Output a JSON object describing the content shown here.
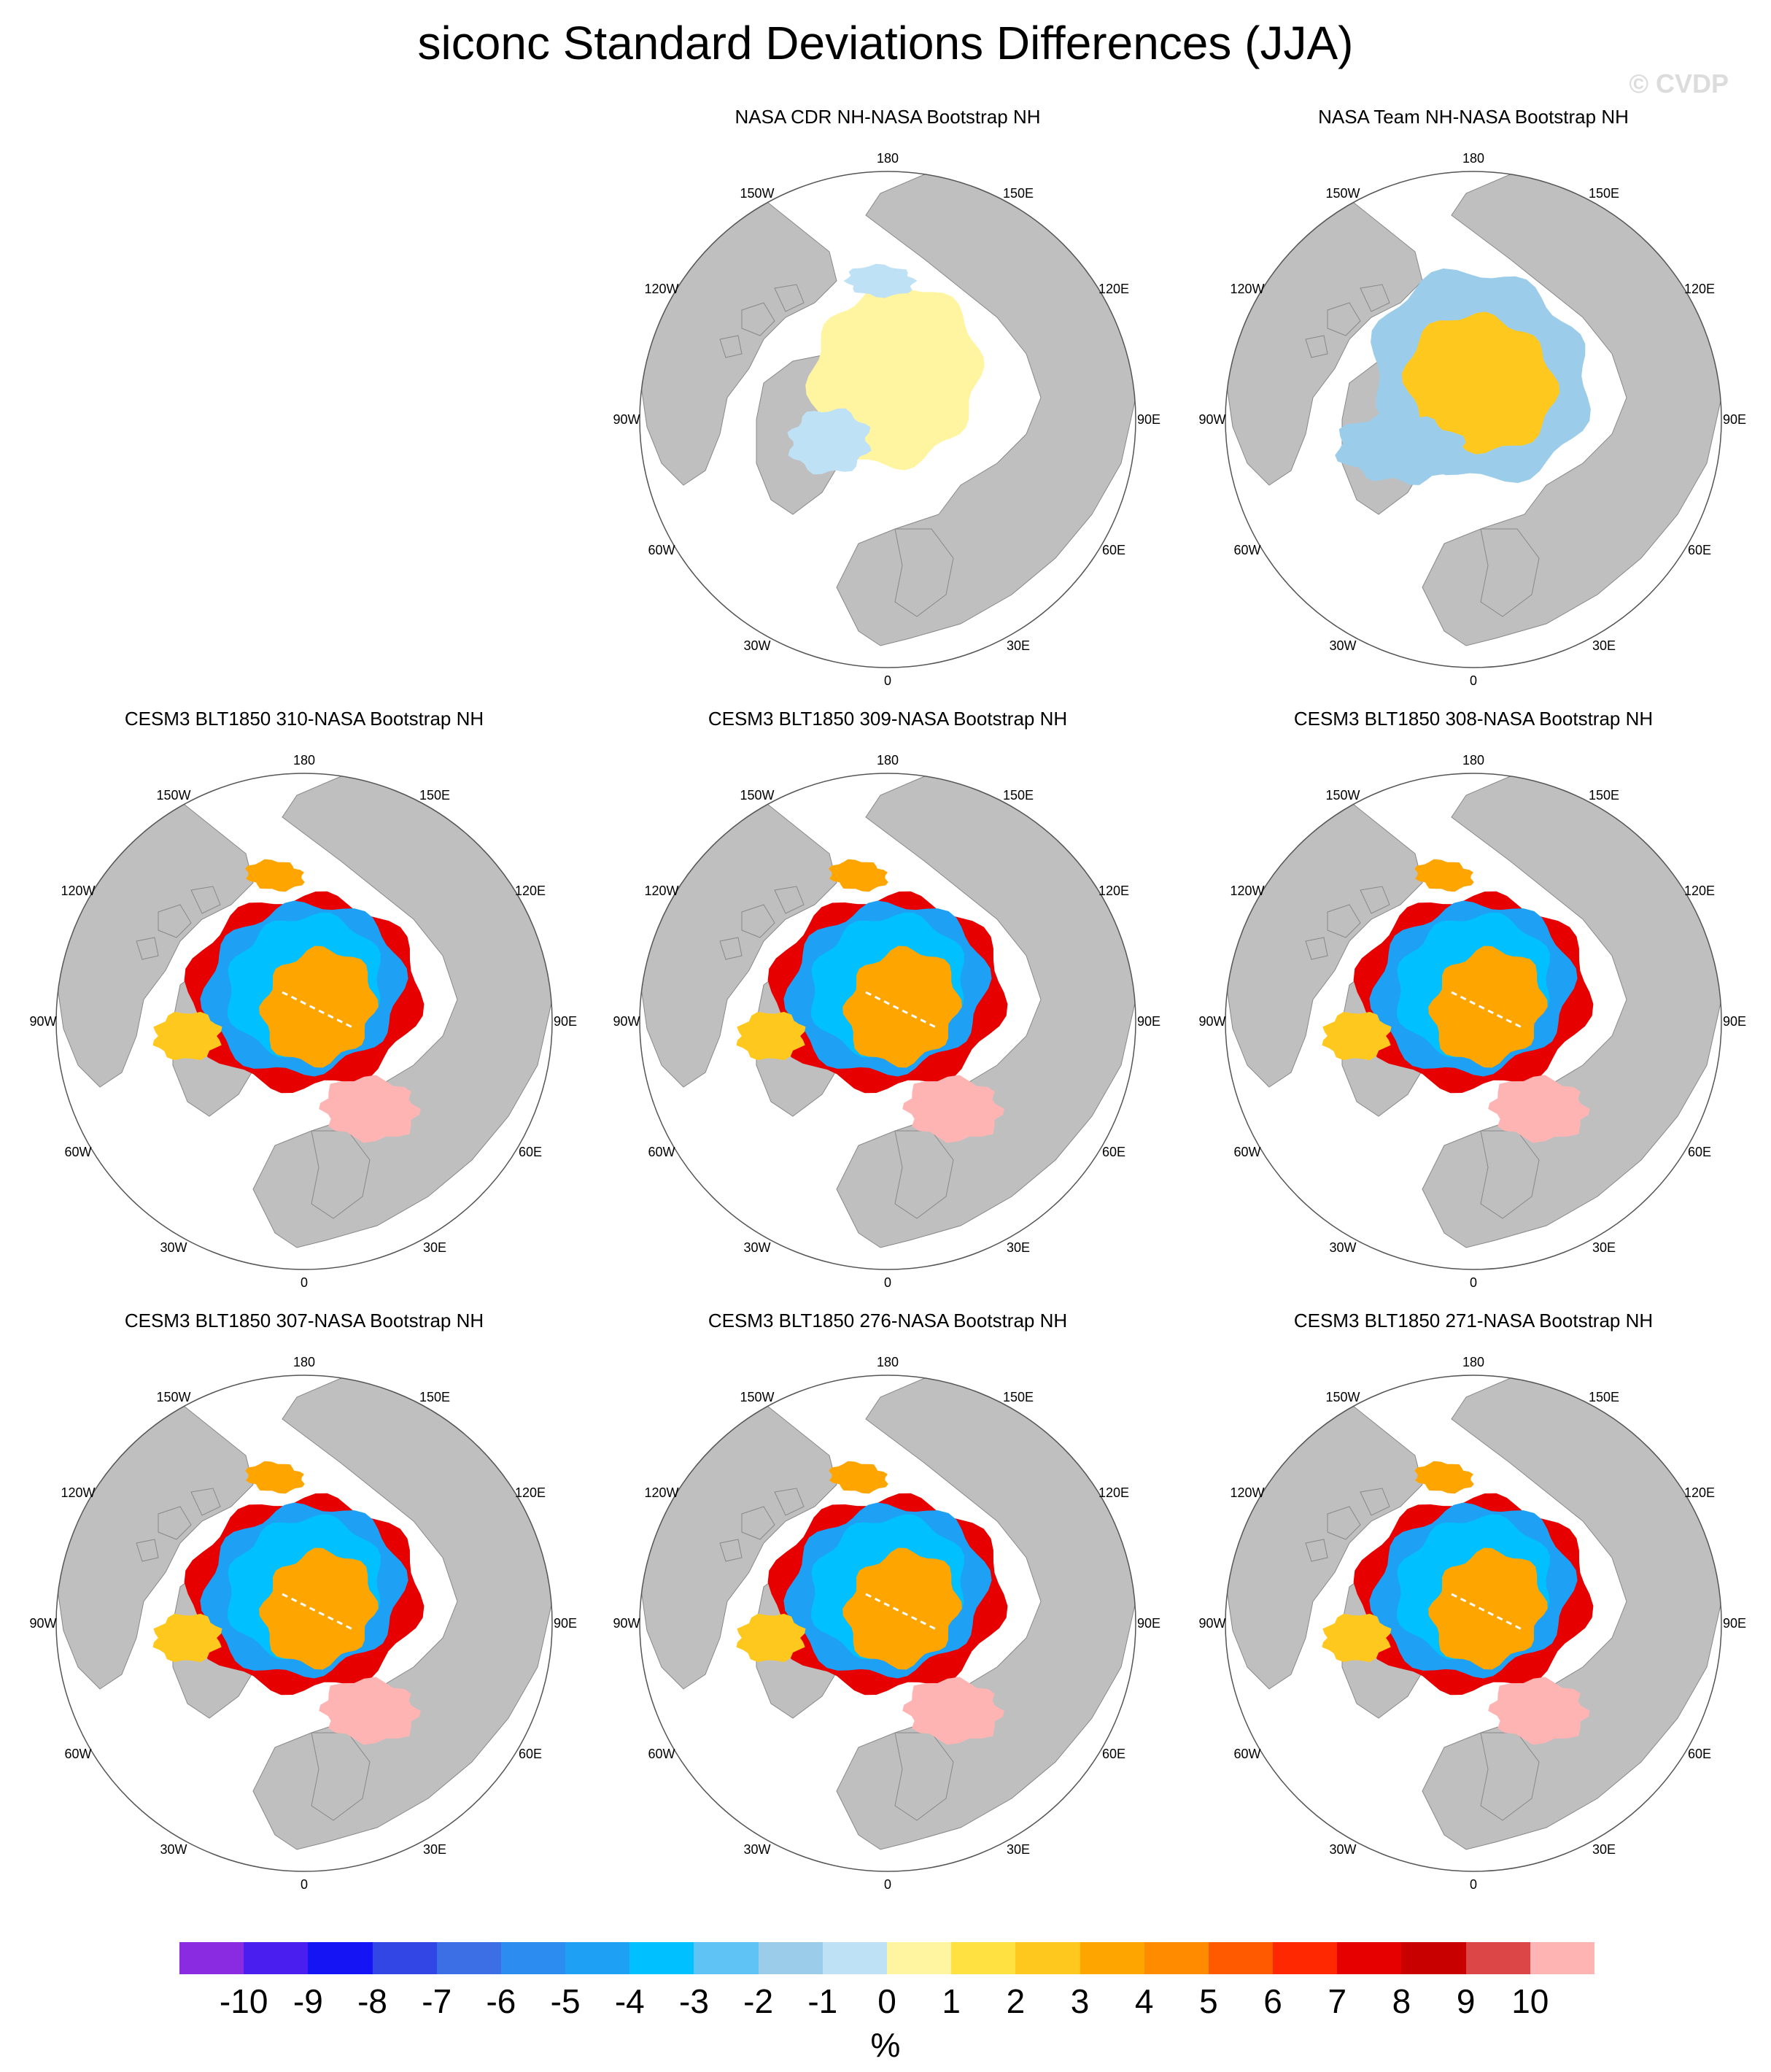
{
  "title": "siconc Standard Deviations Differences (JJA)",
  "watermark": "© CVDP",
  "colors": {
    "land": "#bfbfbf",
    "ocean": "#ffffff",
    "circle": "#555555"
  },
  "lon_labels": [
    "180",
    "150E",
    "120E",
    "90E",
    "60E",
    "30E",
    "0",
    "30W",
    "60W",
    "90W",
    "120W",
    "150W"
  ],
  "chart_data": {
    "type": "heatmap",
    "projection": "polar stereographic (north)",
    "title": "siconc Standard Deviations Differences (JJA)",
    "panels": [
      {
        "title": "NASA CDR NH-NASA Bootstrap NH",
        "pattern": "cdr"
      },
      {
        "title": "NASA Team NH-NASA Bootstrap NH",
        "pattern": "team"
      },
      {
        "title": "CESM3 BLT1850 310-NASA Bootstrap NH",
        "pattern": "cesm"
      },
      {
        "title": "CESM3 BLT1850 309-NASA Bootstrap NH",
        "pattern": "cesm"
      },
      {
        "title": "CESM3 BLT1850 308-NASA Bootstrap NH",
        "pattern": "cesm"
      },
      {
        "title": "CESM3 BLT1850 307-NASA Bootstrap NH",
        "pattern": "cesm"
      },
      {
        "title": "CESM3 BLT1850 276-NASA Bootstrap NH",
        "pattern": "cesm"
      },
      {
        "title": "CESM3 BLT1850 271-NASA Bootstrap NH",
        "pattern": "cesm"
      }
    ],
    "colorbar": {
      "levels": [
        -10,
        -9,
        -8,
        -7,
        -6,
        -5,
        -4,
        -3,
        -2,
        -1,
        0,
        1,
        2,
        3,
        4,
        5,
        6,
        7,
        8,
        9,
        10
      ],
      "tick_labels": [
        "-10",
        "-9",
        "-8",
        "-7",
        "-6",
        "-5",
        "-4",
        "-3",
        "-2",
        "-1",
        "0",
        "1",
        "2",
        "3",
        "4",
        "5",
        "6",
        "7",
        "8",
        "9",
        "10"
      ],
      "colors": [
        "#8a2be2",
        "#4b1ef0",
        "#1414f5",
        "#3246e6",
        "#3c6ee6",
        "#2d8cf0",
        "#1ea0f5",
        "#00c0ff",
        "#5fc3f5",
        "#9bcdeb",
        "#bee1f5",
        "#fff5a0",
        "#ffe141",
        "#ffc81e",
        "#ffa500",
        "#ff8c00",
        "#ff5a00",
        "#ff2800",
        "#e60000",
        "#c80000",
        "#dc4646",
        "#ffb4b4"
      ],
      "unit": "%"
    }
  }
}
